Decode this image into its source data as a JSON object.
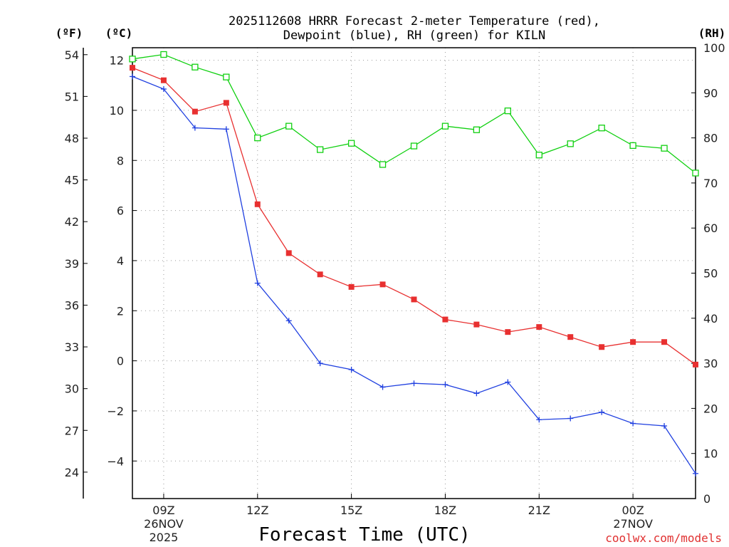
{
  "chart_data": {
    "type": "line",
    "title_line1": "2025112608 HRRR Forecast 2-meter Temperature (red),",
    "title_line2": "Dewpoint (blue), RH (green) for KILN",
    "unit_f": "(ºF)",
    "unit_c": "(ºC)",
    "unit_rh": "(RH)",
    "xlabel": "Forecast Time (UTC)",
    "credit": "coolwx.com/models",
    "x_hours": [
      8,
      9,
      10,
      11,
      12,
      13,
      14,
      15,
      16,
      17,
      18,
      19,
      20,
      21,
      22,
      23,
      24,
      25,
      26
    ],
    "xlim": [
      8,
      26
    ],
    "x_ticks": [
      {
        "hour": 9,
        "lines": [
          "09Z",
          "26NOV",
          "2025"
        ]
      },
      {
        "hour": 12,
        "lines": [
          "12Z"
        ]
      },
      {
        "hour": 15,
        "lines": [
          "15Z"
        ]
      },
      {
        "hour": 18,
        "lines": [
          "18Z"
        ]
      },
      {
        "hour": 21,
        "lines": [
          "21Z"
        ]
      },
      {
        "hour": 24,
        "lines": [
          "00Z",
          "27NOV"
        ]
      }
    ],
    "celsius_axis": {
      "ylim": [
        -5.5,
        12.5
      ],
      "ticks": [
        -4,
        -2,
        0,
        2,
        4,
        6,
        8,
        10,
        12
      ],
      "labels": [
        "−4",
        "−2",
        "0",
        "2",
        "4",
        "6",
        "8",
        "10",
        "12"
      ]
    },
    "fahrenheit_axis": {
      "ticks": [
        24,
        27,
        30,
        33,
        36,
        39,
        42,
        45,
        48,
        51,
        54
      ],
      "labels": [
        "24",
        "27",
        "30",
        "33",
        "36",
        "39",
        "42",
        "45",
        "48",
        "51",
        "54"
      ]
    },
    "rh_axis": {
      "ylim": [
        0,
        100
      ],
      "ticks": [
        0,
        10,
        20,
        30,
        40,
        50,
        60,
        70,
        80,
        90,
        100
      ],
      "labels": [
        "0",
        "10",
        "20",
        "30",
        "40",
        "50",
        "60",
        "70",
        "80",
        "90",
        "100"
      ]
    },
    "series": [
      {
        "name": "Temperature",
        "units": "C",
        "color": "#e83030",
        "marker": "filled-square",
        "values": [
          11.7,
          11.2,
          9.95,
          10.3,
          6.25,
          4.3,
          3.45,
          2.95,
          3.05,
          2.45,
          1.65,
          1.45,
          1.15,
          1.35,
          0.95,
          0.55,
          0.75,
          0.75,
          -0.15
        ]
      },
      {
        "name": "Dewpoint",
        "units": "C",
        "color": "#2040e0",
        "marker": "plus",
        "values": [
          11.35,
          10.85,
          9.3,
          9.25,
          3.1,
          1.6,
          -0.1,
          -0.35,
          -1.05,
          -0.9,
          -0.95,
          -1.3,
          -0.85,
          -2.35,
          -2.3,
          -2.05,
          -2.5,
          -2.6,
          -4.5
        ]
      },
      {
        "name": "RH",
        "units": "%",
        "color": "#10d010",
        "marker": "open-square",
        "values": [
          97.5,
          98.5,
          95.7,
          93.5,
          80.0,
          82.6,
          77.4,
          78.8,
          74.1,
          78.2,
          82.6,
          81.8,
          86.0,
          76.2,
          78.7,
          82.2,
          78.3,
          77.7,
          72.2
        ]
      }
    ]
  }
}
